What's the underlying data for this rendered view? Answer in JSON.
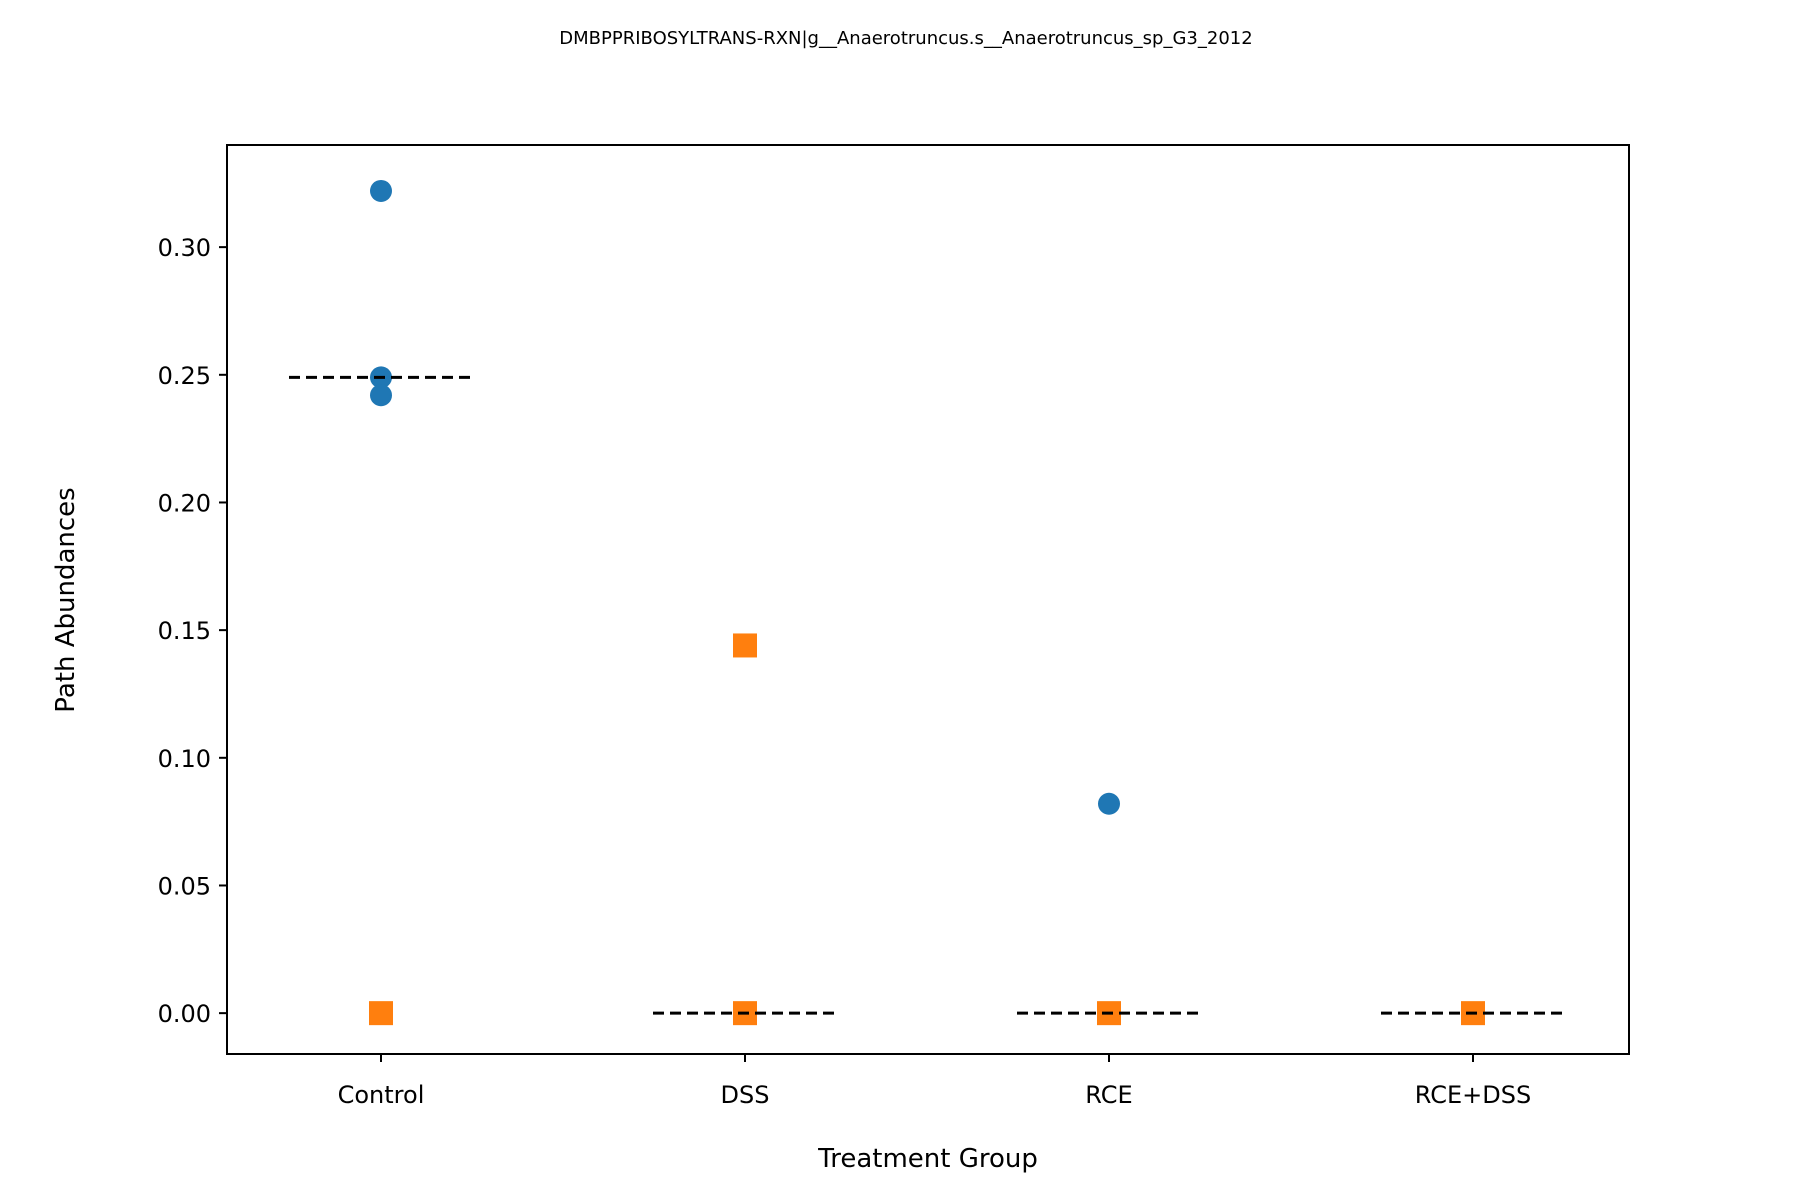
{
  "chart_data": {
    "type": "scatter",
    "title": "DMBPPRIBOSYLTRANS-RXN|g__Anaerotruncus.s__Anaerotruncus_sp_G3_2012",
    "xlabel": "Treatment Group",
    "ylabel": "Path Abundances",
    "categories": [
      "Control",
      "DSS",
      "RCE",
      "RCE+DSS"
    ],
    "ylim": [
      -0.016,
      0.34
    ],
    "yticks": [
      "0.00",
      "0.05",
      "0.10",
      "0.15",
      "0.20",
      "0.25",
      "0.30"
    ],
    "grid": false,
    "legend": "none",
    "series": [
      {
        "marker": "circle",
        "color": "#1f77b4",
        "points": [
          {
            "x": "Control",
            "y": 0.322
          },
          {
            "x": "Control",
            "y": 0.249
          },
          {
            "x": "Control",
            "y": 0.242
          },
          {
            "x": "RCE",
            "y": 0.082
          }
        ]
      },
      {
        "marker": "square",
        "color": "#ff7f0e",
        "points": [
          {
            "x": "Control",
            "y": 0.0
          },
          {
            "x": "DSS",
            "y": 0.144
          },
          {
            "x": "DSS",
            "y": 0.0
          },
          {
            "x": "RCE",
            "y": 0.0
          },
          {
            "x": "RCE+DSS",
            "y": 0.0
          }
        ]
      }
    ],
    "medians": [
      {
        "x": "Control",
        "y": 0.249
      },
      {
        "x": "DSS",
        "y": 0.0
      },
      {
        "x": "RCE",
        "y": 0.0
      },
      {
        "x": "RCE+DSS",
        "y": 0.0
      }
    ],
    "median_line_color": "#000000"
  }
}
